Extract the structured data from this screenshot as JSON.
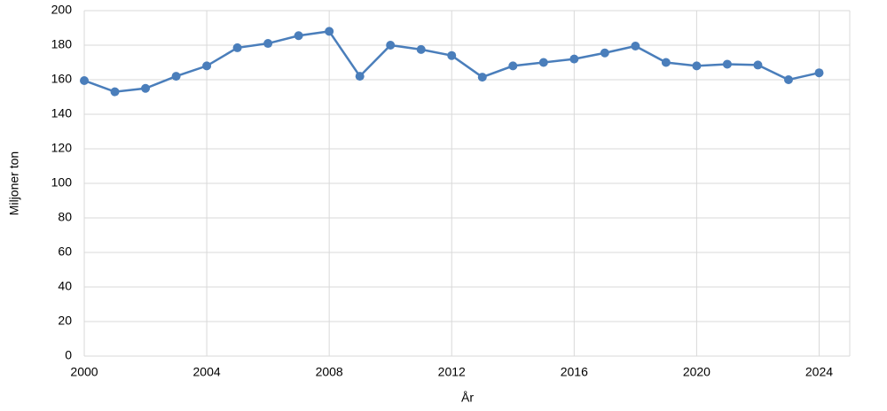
{
  "chart_data": {
    "type": "line",
    "y_label": "Miljoner ton",
    "x_label": "År",
    "x": [
      2000,
      2001,
      2002,
      2003,
      2004,
      2005,
      2006,
      2007,
      2008,
      2009,
      2010,
      2011,
      2012,
      2013,
      2014,
      2015,
      2016,
      2017,
      2018,
      2019,
      2020,
      2021,
      2022,
      2023,
      2024
    ],
    "values": [
      159.5,
      153,
      155,
      162,
      168,
      178.5,
      181,
      185.5,
      188,
      162,
      180,
      177.5,
      174,
      161.5,
      168,
      170,
      172,
      175.5,
      179.5,
      170,
      168,
      169,
      168.5,
      160,
      164
    ],
    "color": "#4a7ebb",
    "xlim": [
      2000,
      2025
    ],
    "xticks": [
      2000,
      2004,
      2008,
      2012,
      2016,
      2020,
      2024
    ],
    "ylim": [
      0,
      200
    ],
    "yticks": [
      0,
      20,
      40,
      60,
      80,
      100,
      120,
      140,
      160,
      180,
      200
    ],
    "grid": true
  }
}
